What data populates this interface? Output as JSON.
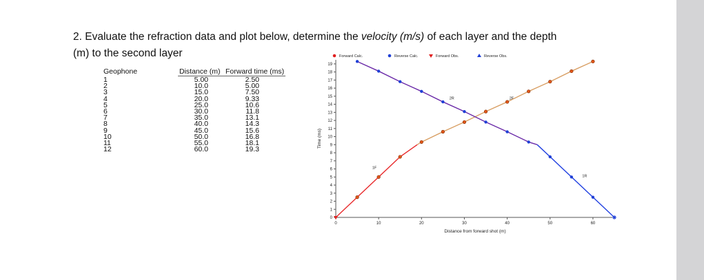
{
  "question": {
    "line1_pre": "2. Evaluate the refraction data and plot below, determine the ",
    "line1_var": "velocity (m/s)",
    "line1_post": " of each layer and the depth",
    "line2": "(m) to the second layer"
  },
  "table": {
    "headers": [
      "Geophone",
      "Distance (m)",
      "Forward time (ms)"
    ],
    "geophones": [
      "1",
      "2",
      "3",
      "4",
      "5",
      "6",
      "7",
      "8",
      "9",
      "10",
      "11",
      "12"
    ],
    "distances": [
      "5.00",
      "10.0",
      "15.0",
      "20.0",
      "25.0",
      "30.0",
      "35.0",
      "40.0",
      "45.0",
      "50.0",
      "55.0",
      "60.0"
    ],
    "times": [
      "2.50",
      "5.00",
      "7.50",
      "9.33",
      "10.6",
      "11.8",
      "13.1",
      "14.3",
      "15.6",
      "16.8",
      "18.1",
      "19.3"
    ]
  },
  "chart_data": {
    "type": "line",
    "xlabel": "Distance from forward shot (m)",
    "ylabel": "Time (ms)",
    "xlim": [
      0,
      65
    ],
    "ylim": [
      0,
      19.5
    ],
    "x_ticks": [
      0,
      10,
      20,
      30,
      40,
      50,
      60
    ],
    "y_ticks": [
      0,
      1,
      2,
      3,
      4,
      5,
      6,
      7,
      8,
      9,
      10,
      11,
      12,
      13,
      14,
      15,
      16,
      17,
      18,
      19
    ],
    "legend_position": "top",
    "legend": [
      {
        "label": "Forward Calc.",
        "marker": "circle",
        "color": "#e02020"
      },
      {
        "label": "Reverse Calc.",
        "marker": "circle",
        "color": "#1f3fd6"
      },
      {
        "label": "Forward Obs.",
        "marker": "triangle-down",
        "color": "#e02020"
      },
      {
        "label": "Reverse Obs.",
        "marker": "triangle-up",
        "color": "#1f3fd6"
      }
    ],
    "series": [
      {
        "name": "Forward Calc.",
        "layer": "1F",
        "color": "#e8282a",
        "x": [
          0,
          5,
          10,
          15,
          19
        ],
        "y": [
          0,
          2.5,
          5.0,
          7.5,
          9.0
        ]
      },
      {
        "name": "Forward Calc.",
        "layer": "2F",
        "color": "#d9a066",
        "x": [
          19,
          20,
          25,
          30,
          35,
          40,
          45,
          50,
          55,
          60
        ],
        "y": [
          9.0,
          9.33,
          10.6,
          11.8,
          13.1,
          14.3,
          15.6,
          16.8,
          18.1,
          19.3
        ]
      },
      {
        "name": "Reverse Calc.",
        "layer": "2R",
        "color": "#6a2aa8",
        "x": [
          5,
          10,
          15,
          20,
          25,
          30,
          35,
          40,
          45,
          47
        ],
        "y": [
          19.3,
          18.1,
          16.8,
          15.6,
          14.3,
          13.1,
          11.8,
          10.6,
          9.33,
          9.0
        ]
      },
      {
        "name": "Reverse Calc.",
        "layer": "1R",
        "color": "#1f3fe0",
        "x": [
          47,
          50,
          55,
          60,
          65
        ],
        "y": [
          9.0,
          7.5,
          5.0,
          2.5,
          0
        ]
      }
    ],
    "forward_points": {
      "x": [
        5,
        10,
        15,
        20,
        25,
        30,
        35,
        40,
        45,
        50,
        55,
        60
      ],
      "y": [
        2.5,
        5.0,
        7.5,
        9.33,
        10.6,
        11.8,
        13.1,
        14.3,
        15.6,
        16.8,
        18.1,
        19.3
      ]
    },
    "reverse_points": {
      "x": [
        5,
        10,
        15,
        20,
        25,
        30,
        35,
        40,
        45,
        50,
        55,
        60
      ],
      "y": [
        19.3,
        18.1,
        16.8,
        15.6,
        14.3,
        13.1,
        11.8,
        10.6,
        9.33,
        7.5,
        5.0,
        2.5
      ]
    },
    "annotations": [
      {
        "text": "1F",
        "x": 8.5,
        "y": 6.0
      },
      {
        "text": "2F",
        "x": 40.5,
        "y": 14.6
      },
      {
        "text": "2R",
        "x": 26.5,
        "y": 14.6
      },
      {
        "text": "1R",
        "x": 57.5,
        "y": 5.0
      }
    ]
  }
}
